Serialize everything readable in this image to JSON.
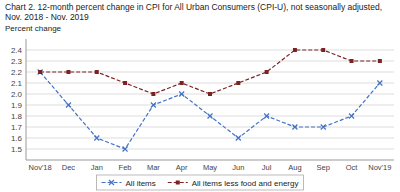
{
  "chart_data": {
    "type": "line",
    "title": "Chart 2. 12-month percent change in CPI for All Urban Consumers (CPI-U), not seasonally adjusted, Nov. 2018 - Nov. 2019",
    "y_label": "Percent change",
    "categories": [
      "Nov'18",
      "Dec",
      "Jan",
      "Feb",
      "Mar",
      "Apr",
      "May",
      "Jun",
      "Jul",
      "Aug",
      "Sep",
      "Oct",
      "Nov'19"
    ],
    "series": [
      {
        "name": "All items",
        "color": "#4472c4",
        "marker": "x",
        "line_style": "dashed",
        "values": [
          2.2,
          1.9,
          1.6,
          1.5,
          1.9,
          2.0,
          1.8,
          1.6,
          1.8,
          1.7,
          1.7,
          1.8,
          2.1
        ]
      },
      {
        "name": "All items less food and energy",
        "color": "#7b2323",
        "marker": "square",
        "line_style": "dashed",
        "values": [
          2.2,
          2.2,
          2.2,
          2.1,
          2.0,
          2.1,
          2.0,
          2.1,
          2.2,
          2.4,
          2.4,
          2.3,
          2.3
        ]
      }
    ],
    "ylim": [
      1.4,
      2.5
    ],
    "yticks": [
      1.5,
      1.6,
      1.7,
      1.8,
      1.9,
      {
        "value": 2.0,
        "label": "2.0"
      },
      2.1,
      2.2,
      2.3,
      2.4
    ],
    "grid": true,
    "legend": "bottom"
  }
}
